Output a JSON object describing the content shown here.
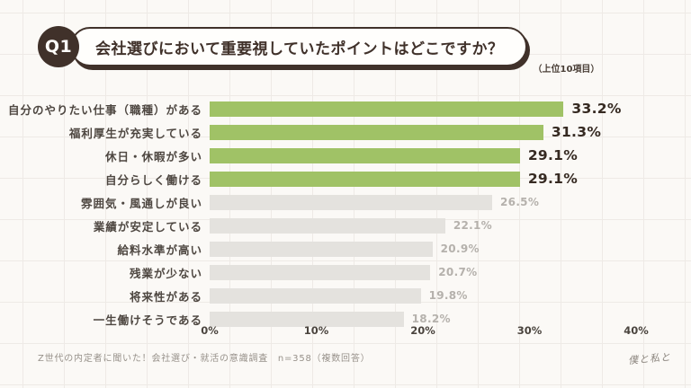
{
  "header": {
    "badge": "Q1",
    "title": "会社選びにおいて重要視していたポイントはどこですか？",
    "note": "（上位10項目）"
  },
  "chart_data": {
    "type": "bar",
    "orientation": "horizontal",
    "title": "会社選びにおいて重要視していたポイントはどこですか？（上位10項目）",
    "categories": [
      "自分のやりたい仕事（職種）がある",
      "福利厚生が充実している",
      "休日・休暇が多い",
      "自分らしく働ける",
      "雰囲気・風通しが良い",
      "業績が安定している",
      "給料水準が高い",
      "残業が少ない",
      "将来性がある",
      "一生働けそうである"
    ],
    "values": [
      33.2,
      31.3,
      29.1,
      29.1,
      26.5,
      22.1,
      20.9,
      20.7,
      19.8,
      18.2
    ],
    "value_labels": [
      "33.2%",
      "31.3%",
      "29.1%",
      "29.1%",
      "26.5%",
      "22.1%",
      "20.9%",
      "20.7%",
      "19.8%",
      "18.2%"
    ],
    "highlight_count": 4,
    "xlim": [
      0,
      40
    ],
    "x_ticks": [
      "0%",
      "10%",
      "20%",
      "30%",
      "40%"
    ],
    "grid": true,
    "legend_position": "none",
    "colors": {
      "bar_highlight": "#a0c266",
      "bar_default": "#e4e2de",
      "value_highlight": "#362a22",
      "value_default": "#b5b1ac"
    }
  },
  "footer": {
    "source": "Z世代の内定者に聞いた！会社選び・就活の意識調査　n=358（複数回答）"
  },
  "logo": {
    "text": "僕と私と"
  }
}
